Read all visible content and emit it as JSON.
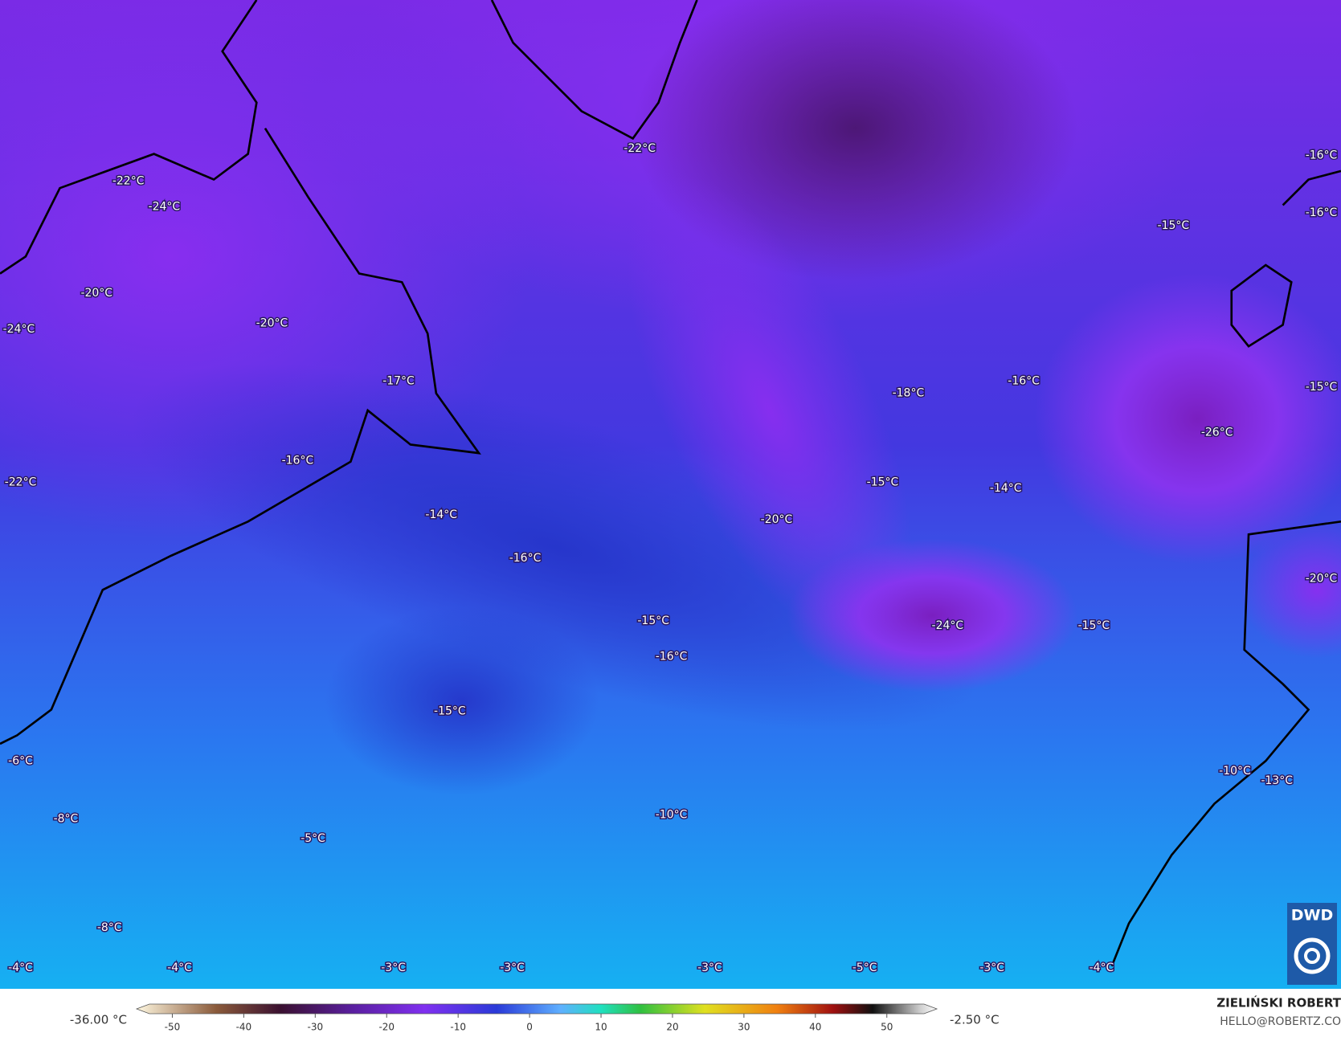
{
  "map_labels": [
    "-22°C",
    "-16°C",
    "-22°C",
    "-24°C",
    "-16°C",
    "-15°C",
    "-20°C",
    "-20°C",
    "-24°C",
    "-17°C",
    "-16°C",
    "-18°C",
    "-15°C",
    "-26°C",
    "-16°C",
    "-22°C",
    "-15°C",
    "-14°C",
    "-14°C",
    "-20°C",
    "-16°C",
    "-20°C",
    "-15°C",
    "-24°C",
    "-15°C",
    "-16°C",
    "-15°C",
    "-6°C",
    "-10°C",
    "-13°C",
    "-10°C",
    "-8°C",
    "-5°C",
    "-8°C",
    "-4°C",
    "-4°C",
    "-3°C",
    "-3°C",
    "-3°C",
    "-5°C",
    "-3°C",
    "-4°C"
  ],
  "colorbar": {
    "ticks": [
      -50,
      -40,
      -30,
      -20,
      -10,
      0,
      10,
      20,
      30,
      40,
      50
    ],
    "lim": [
      -55,
      57
    ],
    "min_label": "-36.00 °C",
    "max_label": "-2.50 °C"
  },
  "logo": "DWD",
  "author": {
    "name": "ZIELIŃSKI ROBERT",
    "email": "HELLO@ROBERTZ.CO"
  }
}
